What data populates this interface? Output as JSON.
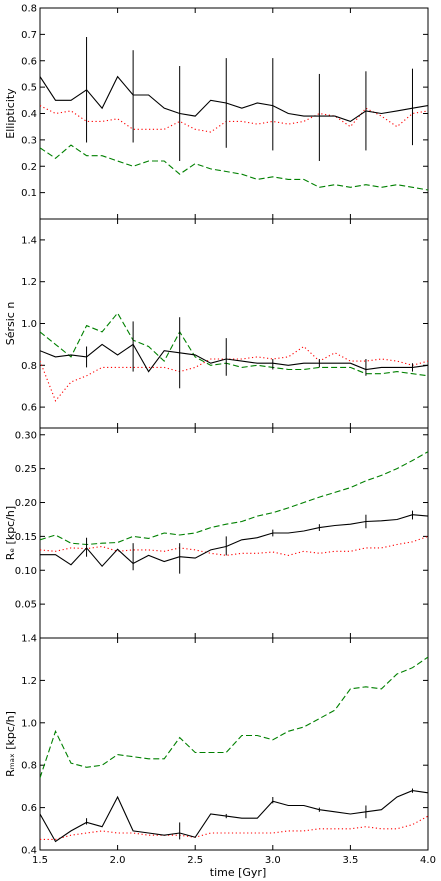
{
  "figure": {
    "xlabel": "time [Gyr]",
    "x_ticks": [
      "1.5",
      "2.0",
      "2.5",
      "3.0",
      "3.5",
      "4.0"
    ]
  },
  "colors": {
    "solid": "#000000",
    "dotted": "#ff0000",
    "dashed": "#008000"
  },
  "chart_data": [
    {
      "type": "line",
      "title": "",
      "ylabel": "Ellipticity",
      "xlim": [
        1.5,
        4.0
      ],
      "ylim": [
        0.0,
        0.8
      ],
      "y_ticks": [
        "0.1",
        "0.2",
        "0.3",
        "0.4",
        "0.5",
        "0.6",
        "0.7",
        "0.8"
      ],
      "x": [
        1.5,
        1.6,
        1.7,
        1.8,
        1.9,
        2.0,
        2.1,
        2.2,
        2.3,
        2.4,
        2.5,
        2.6,
        2.7,
        2.8,
        2.9,
        3.0,
        3.1,
        3.2,
        3.3,
        3.4,
        3.5,
        3.6,
        3.7,
        3.8,
        3.9,
        4.0
      ],
      "series": [
        {
          "style": "solid",
          "values": [
            0.54,
            0.45,
            0.45,
            0.49,
            0.42,
            0.54,
            0.47,
            0.47,
            0.42,
            0.4,
            0.39,
            0.45,
            0.44,
            0.42,
            0.44,
            0.43,
            0.4,
            0.39,
            0.39,
            0.39,
            0.37,
            0.41,
            0.4,
            0.41,
            0.42,
            0.43
          ]
        },
        {
          "style": "dotted",
          "values": [
            0.43,
            0.4,
            0.41,
            0.37,
            0.37,
            0.38,
            0.34,
            0.34,
            0.34,
            0.37,
            0.34,
            0.33,
            0.37,
            0.37,
            0.36,
            0.37,
            0.36,
            0.37,
            0.4,
            0.39,
            0.35,
            0.42,
            0.39,
            0.35,
            0.4,
            0.41
          ]
        },
        {
          "style": "dashed",
          "values": [
            0.27,
            0.23,
            0.28,
            0.24,
            0.24,
            0.22,
            0.2,
            0.22,
            0.22,
            0.17,
            0.21,
            0.19,
            0.18,
            0.17,
            0.15,
            0.16,
            0.15,
            0.15,
            0.12,
            0.13,
            0.12,
            0.13,
            0.12,
            0.13,
            0.12,
            0.11
          ]
        }
      ],
      "errorbars": [
        {
          "x": 1.8,
          "low": 0.29,
          "high": 0.69
        },
        {
          "x": 2.1,
          "low": 0.29,
          "high": 0.64
        },
        {
          "x": 2.4,
          "low": 0.22,
          "high": 0.58
        },
        {
          "x": 2.7,
          "low": 0.27,
          "high": 0.61
        },
        {
          "x": 3.0,
          "low": 0.26,
          "high": 0.61
        },
        {
          "x": 3.3,
          "low": 0.22,
          "high": 0.55
        },
        {
          "x": 3.6,
          "low": 0.26,
          "high": 0.56
        },
        {
          "x": 3.9,
          "low": 0.28,
          "high": 0.57
        }
      ]
    },
    {
      "type": "line",
      "title": "",
      "ylabel": "Sérsic n",
      "xlim": [
        1.5,
        4.0
      ],
      "ylim": [
        0.5,
        1.5
      ],
      "y_ticks": [
        "0.6",
        "0.8",
        "1.0",
        "1.2",
        "1.4"
      ],
      "x": [
        1.5,
        1.6,
        1.7,
        1.8,
        1.9,
        2.0,
        2.1,
        2.2,
        2.3,
        2.4,
        2.5,
        2.6,
        2.7,
        2.8,
        2.9,
        3.0,
        3.1,
        3.2,
        3.3,
        3.4,
        3.5,
        3.6,
        3.7,
        3.8,
        3.9,
        4.0
      ],
      "series": [
        {
          "style": "solid",
          "values": [
            0.87,
            0.84,
            0.85,
            0.84,
            0.9,
            0.85,
            0.9,
            0.77,
            0.87,
            0.86,
            0.85,
            0.81,
            0.83,
            0.82,
            0.81,
            0.81,
            0.8,
            0.81,
            0.81,
            0.81,
            0.81,
            0.78,
            0.79,
            0.79,
            0.79,
            0.8
          ]
        },
        {
          "style": "dotted",
          "values": [
            0.82,
            0.63,
            0.72,
            0.75,
            0.79,
            0.79,
            0.79,
            0.79,
            0.79,
            0.77,
            0.79,
            0.83,
            0.83,
            0.83,
            0.84,
            0.83,
            0.84,
            0.89,
            0.82,
            0.86,
            0.82,
            0.82,
            0.83,
            0.82,
            0.8,
            0.82
          ]
        },
        {
          "style": "dashed",
          "values": [
            0.96,
            0.9,
            0.84,
            0.99,
            0.96,
            1.05,
            0.92,
            0.89,
            0.82,
            0.96,
            0.84,
            0.8,
            0.81,
            0.79,
            0.8,
            0.79,
            0.78,
            0.78,
            0.79,
            0.79,
            0.79,
            0.76,
            0.76,
            0.77,
            0.76,
            0.75
          ]
        }
      ],
      "errorbars": [
        {
          "x": 1.8,
          "low": 0.79,
          "high": 0.89
        },
        {
          "x": 2.1,
          "low": 0.77,
          "high": 1.01
        },
        {
          "x": 2.4,
          "low": 0.69,
          "high": 1.03
        },
        {
          "x": 2.7,
          "low": 0.75,
          "high": 0.93
        },
        {
          "x": 3.0,
          "low": 0.78,
          "high": 0.83
        },
        {
          "x": 3.3,
          "low": 0.79,
          "high": 0.83
        },
        {
          "x": 3.6,
          "low": 0.75,
          "high": 0.83
        },
        {
          "x": 3.9,
          "low": 0.77,
          "high": 0.81
        }
      ]
    },
    {
      "type": "line",
      "title": "",
      "ylabel": "Rₑ [kpc/h]",
      "xlim": [
        1.5,
        4.0
      ],
      "ylim": [
        0.0,
        0.31
      ],
      "y_ticks": [
        "0.05",
        "0.10",
        "0.15",
        "0.20",
        "0.25",
        "0.30"
      ],
      "x": [
        1.5,
        1.6,
        1.7,
        1.8,
        1.9,
        2.0,
        2.1,
        2.2,
        2.3,
        2.4,
        2.5,
        2.6,
        2.7,
        2.8,
        2.9,
        3.0,
        3.1,
        3.2,
        3.3,
        3.4,
        3.5,
        3.6,
        3.7,
        3.8,
        3.9,
        4.0
      ],
      "series": [
        {
          "style": "solid",
          "values": [
            0.123,
            0.123,
            0.108,
            0.133,
            0.106,
            0.131,
            0.11,
            0.122,
            0.113,
            0.12,
            0.118,
            0.13,
            0.135,
            0.145,
            0.148,
            0.155,
            0.155,
            0.158,
            0.163,
            0.166,
            0.168,
            0.172,
            0.173,
            0.175,
            0.182,
            0.18
          ]
        },
        {
          "style": "dotted",
          "values": [
            0.13,
            0.128,
            0.133,
            0.132,
            0.135,
            0.128,
            0.13,
            0.13,
            0.128,
            0.133,
            0.13,
            0.125,
            0.122,
            0.125,
            0.125,
            0.127,
            0.122,
            0.128,
            0.125,
            0.128,
            0.128,
            0.133,
            0.133,
            0.138,
            0.142,
            0.15
          ]
        },
        {
          "style": "dashed",
          "values": [
            0.145,
            0.152,
            0.14,
            0.138,
            0.14,
            0.141,
            0.15,
            0.147,
            0.155,
            0.152,
            0.155,
            0.163,
            0.168,
            0.172,
            0.18,
            0.185,
            0.192,
            0.2,
            0.208,
            0.215,
            0.222,
            0.232,
            0.24,
            0.25,
            0.262,
            0.275
          ]
        }
      ],
      "errorbars": [
        {
          "x": 1.8,
          "low": 0.12,
          "high": 0.148
        },
        {
          "x": 2.1,
          "low": 0.1,
          "high": 0.14
        },
        {
          "x": 2.4,
          "low": 0.095,
          "high": 0.14
        },
        {
          "x": 2.7,
          "low": 0.122,
          "high": 0.15
        },
        {
          "x": 3.0,
          "low": 0.15,
          "high": 0.16
        },
        {
          "x": 3.3,
          "low": 0.158,
          "high": 0.168
        },
        {
          "x": 3.6,
          "low": 0.162,
          "high": 0.182
        },
        {
          "x": 3.9,
          "low": 0.175,
          "high": 0.188
        }
      ]
    },
    {
      "type": "line",
      "title": "",
      "ylabel": "Rₘₐₓ [kpc/h]",
      "xlim": [
        1.5,
        4.0
      ],
      "ylim": [
        0.4,
        1.4
      ],
      "y_ticks": [
        "0.4",
        "0.6",
        "0.8",
        "1.0",
        "1.2",
        "1.4"
      ],
      "x": [
        1.5,
        1.6,
        1.7,
        1.8,
        1.9,
        2.0,
        2.1,
        2.2,
        2.3,
        2.4,
        2.5,
        2.6,
        2.7,
        2.8,
        2.9,
        3.0,
        3.1,
        3.2,
        3.3,
        3.4,
        3.5,
        3.6,
        3.7,
        3.8,
        3.9,
        4.0
      ],
      "series": [
        {
          "style": "solid",
          "values": [
            0.57,
            0.44,
            0.49,
            0.53,
            0.51,
            0.65,
            0.49,
            0.48,
            0.47,
            0.48,
            0.46,
            0.57,
            0.56,
            0.55,
            0.55,
            0.63,
            0.61,
            0.61,
            0.59,
            0.58,
            0.57,
            0.58,
            0.59,
            0.65,
            0.68,
            0.67
          ]
        },
        {
          "style": "dotted",
          "values": [
            0.45,
            0.45,
            0.47,
            0.48,
            0.49,
            0.48,
            0.48,
            0.47,
            0.47,
            0.47,
            0.46,
            0.48,
            0.48,
            0.48,
            0.48,
            0.48,
            0.49,
            0.49,
            0.5,
            0.5,
            0.5,
            0.51,
            0.5,
            0.5,
            0.52,
            0.56
          ]
        },
        {
          "style": "dashed",
          "values": [
            0.74,
            0.96,
            0.81,
            0.79,
            0.8,
            0.85,
            0.84,
            0.83,
            0.83,
            0.93,
            0.86,
            0.86,
            0.86,
            0.94,
            0.94,
            0.92,
            0.96,
            0.98,
            1.02,
            1.06,
            1.16,
            1.17,
            1.16,
            1.23,
            1.26,
            1.31
          ]
        }
      ],
      "errorbars": [
        {
          "x": 1.8,
          "low": 0.52,
          "high": 0.55
        },
        {
          "x": 2.4,
          "low": 0.45,
          "high": 0.53
        },
        {
          "x": 2.7,
          "low": 0.55,
          "high": 0.57
        },
        {
          "x": 3.0,
          "low": 0.62,
          "high": 0.65
        },
        {
          "x": 3.3,
          "low": 0.58,
          "high": 0.6
        },
        {
          "x": 3.6,
          "low": 0.55,
          "high": 0.61
        },
        {
          "x": 3.9,
          "low": 0.67,
          "high": 0.69
        }
      ]
    }
  ]
}
